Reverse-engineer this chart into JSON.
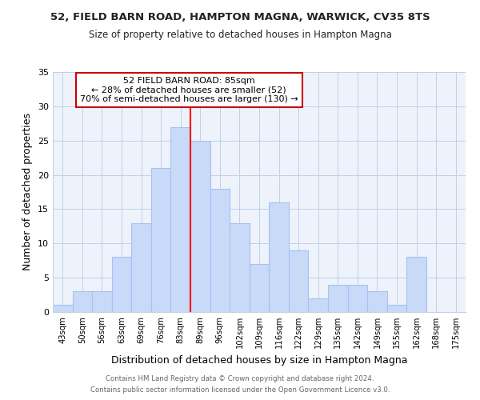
{
  "title1": "52, FIELD BARN ROAD, HAMPTON MAGNA, WARWICK, CV35 8TS",
  "title2": "Size of property relative to detached houses in Hampton Magna",
  "xlabel": "Distribution of detached houses by size in Hampton Magna",
  "ylabel": "Number of detached properties",
  "footer1": "Contains HM Land Registry data © Crown copyright and database right 2024.",
  "footer2": "Contains public sector information licensed under the Open Government Licence v3.0.",
  "bin_labels": [
    "43sqm",
    "50sqm",
    "56sqm",
    "63sqm",
    "69sqm",
    "76sqm",
    "83sqm",
    "89sqm",
    "96sqm",
    "102sqm",
    "109sqm",
    "116sqm",
    "122sqm",
    "129sqm",
    "135sqm",
    "142sqm",
    "149sqm",
    "155sqm",
    "162sqm",
    "168sqm",
    "175sqm"
  ],
  "values": [
    1,
    3,
    3,
    8,
    13,
    21,
    27,
    25,
    18,
    13,
    7,
    16,
    9,
    2,
    4,
    4,
    3,
    1,
    8,
    0,
    0
  ],
  "bar_color": "#c9daf8",
  "bar_edge_color": "#a4c2f4",
  "vline_color": "red",
  "vline_index": 6.5,
  "annotation_title": "52 FIELD BARN ROAD: 85sqm",
  "annotation_line1": "← 28% of detached houses are smaller (52)",
  "annotation_line2": "70% of semi-detached houses are larger (130) →",
  "annotation_box_color": "#ffffff",
  "annotation_box_edge": "#cc0000",
  "ylim": [
    0,
    35
  ],
  "yticks": [
    0,
    5,
    10,
    15,
    20,
    25,
    30,
    35
  ],
  "bg_color": "#eef3fb"
}
